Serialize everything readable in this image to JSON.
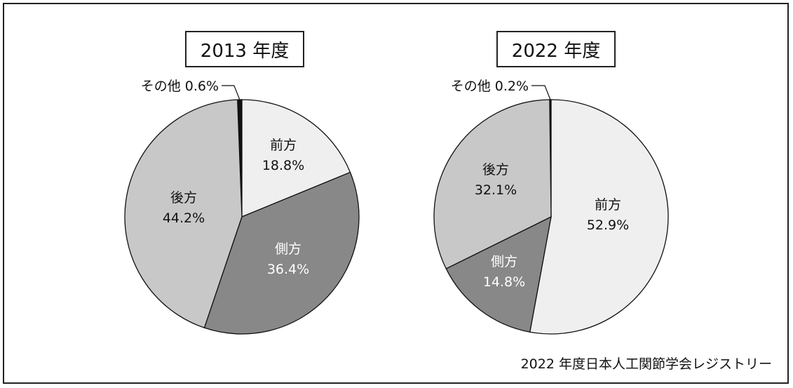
{
  "source_note": "2022 年度日本人工関節学会レジストリー",
  "colors": {
    "前方": "#efefef",
    "側方": "#888888",
    "後方": "#c8c8c8",
    "その他": "#111111"
  },
  "chart_data": [
    {
      "type": "pie",
      "title": "2013 年度",
      "slices": [
        {
          "label": "前方",
          "value": 18.8,
          "text": "18.8%"
        },
        {
          "label": "側方",
          "value": 36.4,
          "text": "36.4%"
        },
        {
          "label": "後方",
          "value": 44.2,
          "text": "44.2%"
        },
        {
          "label": "その他",
          "value": 0.6,
          "text": "その他 0.6%"
        }
      ]
    },
    {
      "type": "pie",
      "title": "2022 年度",
      "slices": [
        {
          "label": "前方",
          "value": 52.9,
          "text": "52.9%"
        },
        {
          "label": "側方",
          "value": 14.8,
          "text": "14.8%"
        },
        {
          "label": "後方",
          "value": 32.1,
          "text": "32.1%"
        },
        {
          "label": "その他",
          "value": 0.2,
          "text": "その他 0.2%"
        }
      ]
    }
  ]
}
